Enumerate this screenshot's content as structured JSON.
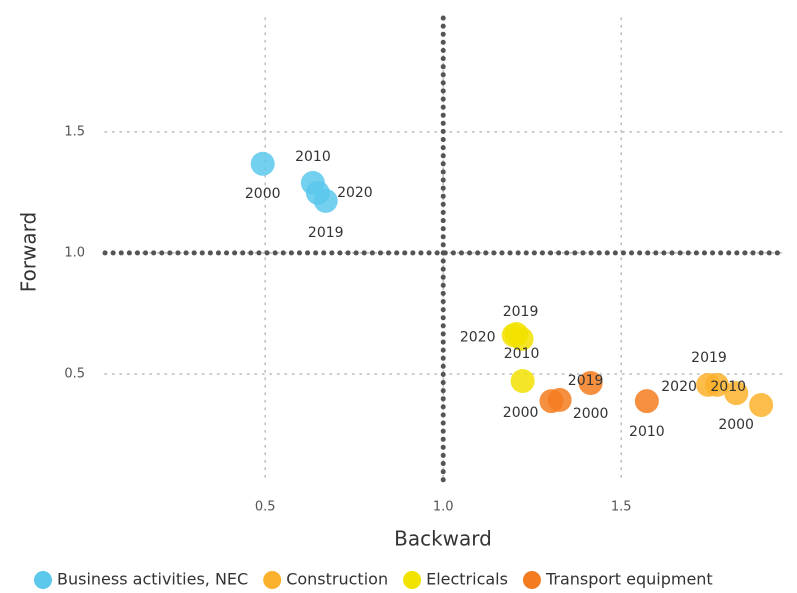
{
  "chart_data": {
    "type": "scatter",
    "xlabel": "Backward",
    "ylabel": "Forward",
    "xlim": [
      0.05,
      1.96
    ],
    "ylim": [
      0.05,
      1.97
    ],
    "xticks": [
      0.5,
      {
        "value": 1,
        "label": "1.0"
      },
      1.5
    ],
    "yticks": [
      {
        "value": 1,
        "label": "1.0"
      },
      0.5,
      1.5
    ],
    "grid": true,
    "ref_x": 1,
    "ref_y": 1,
    "legend": "bottom",
    "series": [
      {
        "name": "Business activities, NEC",
        "color": "#5bc8ec",
        "x": [
          0.493,
          0.634,
          0.648,
          0.67
        ],
        "values": [
          1.368,
          1.289,
          1.248,
          1.215
        ],
        "labels": [
          "2000",
          "2010",
          "2020",
          "2019"
        ]
      },
      {
        "name": "Construction",
        "color": "#fbb12b",
        "x": [
          1.744,
          1.769,
          1.823,
          1.893
        ],
        "values": [
          0.455,
          0.455,
          0.421,
          0.372
        ],
        "labels": [
          "2020",
          "2019",
          "2010",
          "2000"
        ]
      },
      {
        "name": "Electricals",
        "color": "#f2e200",
        "x": [
          1.206,
          1.198,
          1.22,
          1.223
        ],
        "values": [
          0.665,
          0.66,
          0.645,
          0.471
        ],
        "labels": [
          "2019",
          "2020",
          "2010",
          "2000"
        ]
      },
      {
        "name": "Transport equipment",
        "color": "#f47c20",
        "x": [
          1.304,
          1.327,
          1.414,
          1.572
        ],
        "values": [
          0.388,
          0.393,
          0.463,
          0.388
        ],
        "labels": [
          null,
          "2000",
          "2019",
          "2010"
        ]
      }
    ]
  }
}
